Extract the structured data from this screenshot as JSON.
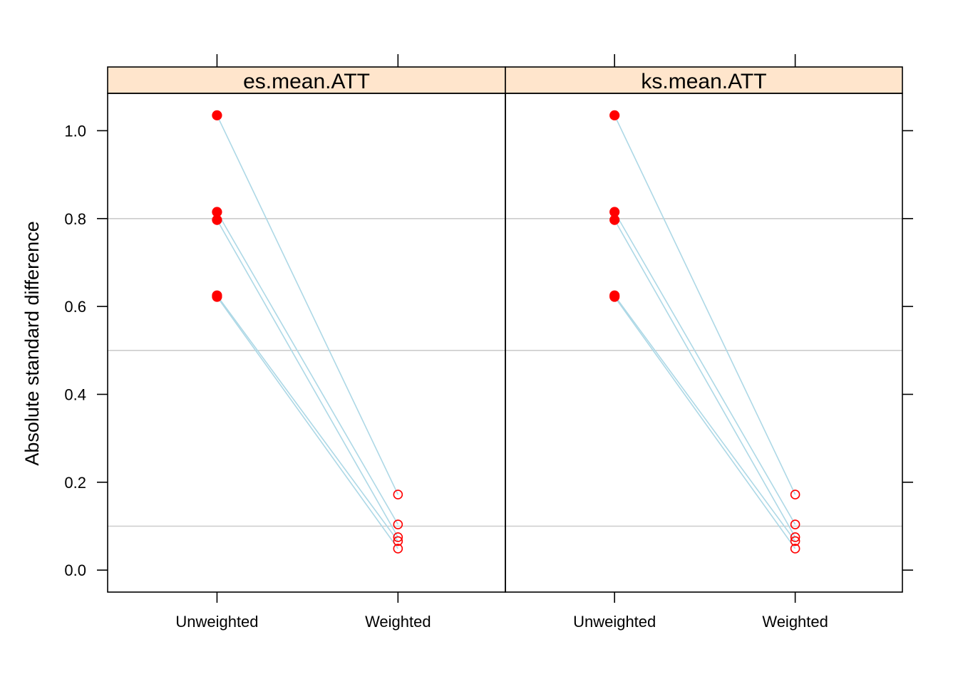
{
  "chart_data": {
    "type": "line",
    "ylabel": "Absolute standard difference",
    "xlabel": "",
    "categories": [
      "Unweighted",
      "Weighted"
    ],
    "ylim": [
      -0.05,
      1.085
    ],
    "yticks": [
      "0.0",
      "0.2",
      "0.4",
      "0.6",
      "0.8",
      "1.0"
    ],
    "ytick_values": [
      0,
      0.2,
      0.4,
      0.6,
      0.8,
      1.0
    ],
    "reference_lines": [
      0.1,
      0.5,
      0.8
    ],
    "colors": {
      "line": "#add8e6",
      "point": "#ff0000",
      "strip": "#ffe5cc",
      "reference": "#cccccc"
    },
    "panels": [
      {
        "title": "es.mean.ATT",
        "series": [
          {
            "values": [
              1.035,
              0.172
            ]
          },
          {
            "values": [
              0.815,
              0.104
            ]
          },
          {
            "values": [
              0.797,
              0.075
            ]
          },
          {
            "values": [
              0.625,
              0.066
            ]
          },
          {
            "values": [
              0.622,
              0.049
            ]
          }
        ]
      },
      {
        "title": "ks.mean.ATT",
        "series": [
          {
            "values": [
              1.035,
              0.172
            ]
          },
          {
            "values": [
              0.815,
              0.104
            ]
          },
          {
            "values": [
              0.797,
              0.075
            ]
          },
          {
            "values": [
              0.625,
              0.066
            ]
          },
          {
            "values": [
              0.622,
              0.049
            ]
          }
        ]
      }
    ]
  }
}
